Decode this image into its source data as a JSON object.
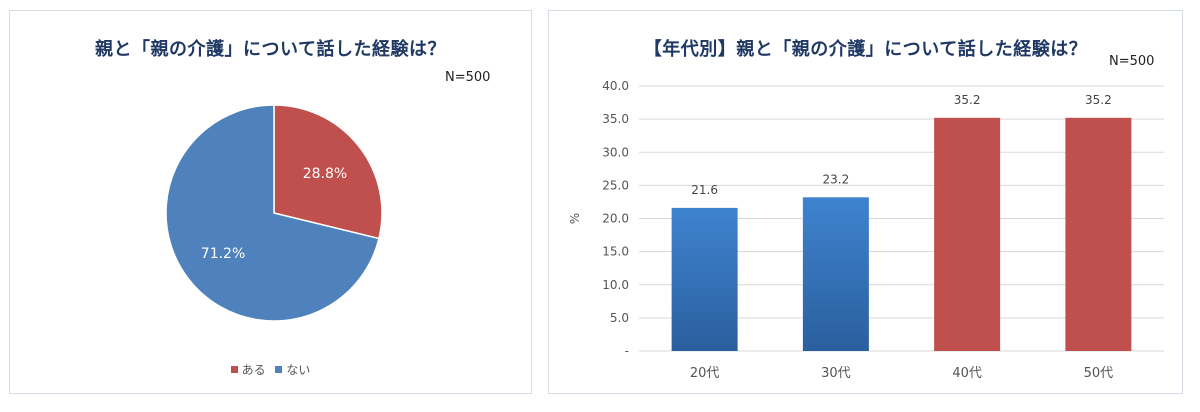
{
  "colors": {
    "aru": "#c0504d",
    "nai": "#4f81bd",
    "bar_blue": "#3a78c0",
    "bar_red": "#c0504d",
    "grid": "#d9d9d9"
  },
  "chart_data": [
    {
      "type": "pie",
      "title": "親と「親の介護」について話した経験は？",
      "n_label": "N=500",
      "slices": [
        {
          "name": "ある",
          "value": 28.8,
          "label": "28.8%"
        },
        {
          "name": "ない",
          "value": 71.2,
          "label": "71.2%"
        }
      ],
      "legend": [
        "ある",
        "ない"
      ],
      "legend_placement": "bottom"
    },
    {
      "type": "bar",
      "title": "【年代別】親と「親の介護」について話した経験は？",
      "n_label": "N=500",
      "categories": [
        "20代",
        "30代",
        "40代",
        "50代"
      ],
      "values": [
        21.6,
        23.2,
        35.2,
        35.2
      ],
      "value_labels": [
        "21.6",
        "23.2",
        "35.2",
        "35.2"
      ],
      "ylabel": "%",
      "ylim": [
        0,
        40
      ],
      "yticks": [
        "-",
        "5.0",
        "10.0",
        "15.0",
        "20.0",
        "25.0",
        "30.0",
        "35.0",
        "40.0"
      ],
      "grid": true
    }
  ]
}
